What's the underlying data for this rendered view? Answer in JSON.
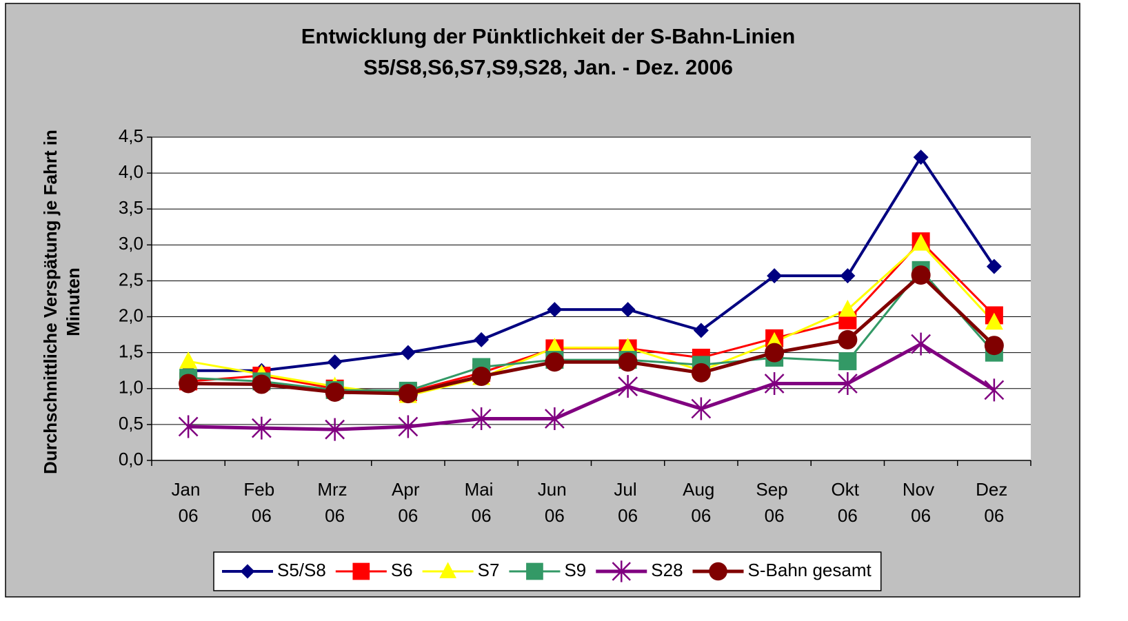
{
  "chart_data": {
    "type": "line",
    "title": [
      "Entwicklung der Pünktlichkeit der S-Bahn-Linien",
      "S5/S8,S6,S7,S9,S28,  Jan. - Dez. 2006"
    ],
    "y_label": [
      "Durchschnittliche Verspätung je Fahrt in",
      "Minuten"
    ],
    "categories": [
      "Jan 06",
      "Feb 06",
      "Mrz 06",
      "Apr 06",
      "Mai 06",
      "Jun 06",
      "Jul 06",
      "Aug 06",
      "Sep 06",
      "Okt 06",
      "Nov 06",
      "Dez 06"
    ],
    "ylim": [
      0,
      4.5
    ],
    "yticks": [
      {
        "value": 0,
        "label": "0,0"
      },
      {
        "value": 0.5,
        "label": "0,5"
      },
      {
        "value": 1,
        "label": "1,0"
      },
      {
        "value": 1.5,
        "label": "1,5"
      },
      {
        "value": 2,
        "label": "2,0"
      },
      {
        "value": 2.5,
        "label": "2,5"
      },
      {
        "value": 3,
        "label": "3,0"
      },
      {
        "value": 3.5,
        "label": "3,5"
      },
      {
        "value": 4,
        "label": "4,0"
      },
      {
        "value": 4.5,
        "label": "4,5"
      }
    ],
    "grid": true,
    "legend": "bottom",
    "series": [
      {
        "name": "S5/S8",
        "color": "#000080",
        "marker": "diamond",
        "line_width": 4,
        "values": [
          1.25,
          1.25,
          1.37,
          1.5,
          1.68,
          2.1,
          2.1,
          1.81,
          2.57,
          2.57,
          4.22,
          2.7
        ]
      },
      {
        "name": "S6",
        "color": "#ff0000",
        "marker": "square",
        "line_width": 3,
        "values": [
          1.1,
          1.18,
          1.0,
          0.95,
          1.22,
          1.56,
          1.56,
          1.43,
          1.7,
          1.95,
          3.05,
          2.02
        ]
      },
      {
        "name": "S7",
        "color": "#ffff00",
        "marker": "triangle",
        "line_width": 3,
        "values": [
          1.38,
          1.2,
          1.03,
          0.9,
          1.15,
          1.57,
          1.57,
          1.25,
          1.65,
          2.1,
          3.02,
          1.92
        ]
      },
      {
        "name": "S9",
        "color": "#339966",
        "marker": "square",
        "line_width": 3,
        "values": [
          1.15,
          1.1,
          0.98,
          0.97,
          1.3,
          1.4,
          1.4,
          1.33,
          1.43,
          1.38,
          2.65,
          1.5
        ]
      },
      {
        "name": "S28",
        "color": "#800080",
        "marker": "star",
        "line_width": 5,
        "values": [
          0.47,
          0.45,
          0.43,
          0.47,
          0.58,
          0.58,
          1.03,
          0.72,
          1.07,
          1.07,
          1.62,
          0.98
        ]
      },
      {
        "name": "S-Bahn gesamt",
        "color": "#800000",
        "marker": "circle",
        "line_width": 5,
        "values": [
          1.07,
          1.06,
          0.95,
          0.93,
          1.17,
          1.37,
          1.37,
          1.22,
          1.5,
          1.68,
          2.58,
          1.6
        ]
      }
    ]
  }
}
